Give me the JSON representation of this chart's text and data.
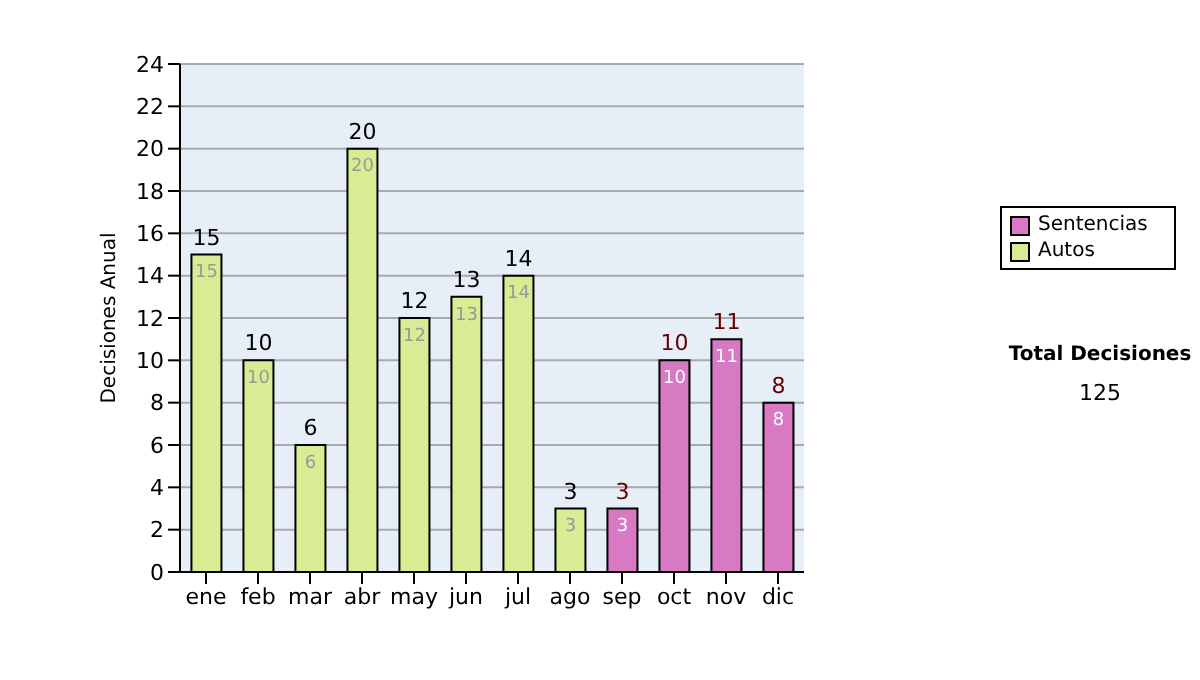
{
  "chart_data": {
    "type": "bar",
    "categories": [
      "ene",
      "feb",
      "mar",
      "abr",
      "may",
      "jun",
      "jul",
      "ago",
      "sep",
      "oct",
      "nov",
      "dic"
    ],
    "series": [
      {
        "name": "Sentencias",
        "color": "#d779c3",
        "values": [
          null,
          null,
          null,
          null,
          null,
          null,
          null,
          null,
          3,
          10,
          11,
          8
        ]
      },
      {
        "name": "Autos",
        "color": "#d7ec93",
        "values": [
          15,
          10,
          6,
          20,
          12,
          13,
          14,
          3,
          null,
          null,
          null,
          null
        ]
      }
    ],
    "ylabel": "Decisiones Anual",
    "ylim": [
      0,
      24
    ],
    "yticks": [
      0,
      2,
      4,
      6,
      8,
      10,
      12,
      14,
      16,
      18,
      20,
      22,
      24
    ],
    "grid": "y",
    "legend": "right",
    "data_labels": true,
    "stacked": true,
    "totals": [
      "15",
      "10",
      "6",
      "20",
      "12",
      "13",
      "14",
      "3",
      "3",
      "10",
      "11",
      "8"
    ],
    "annotations": [
      "Total Decisiones",
      "125"
    ]
  }
}
